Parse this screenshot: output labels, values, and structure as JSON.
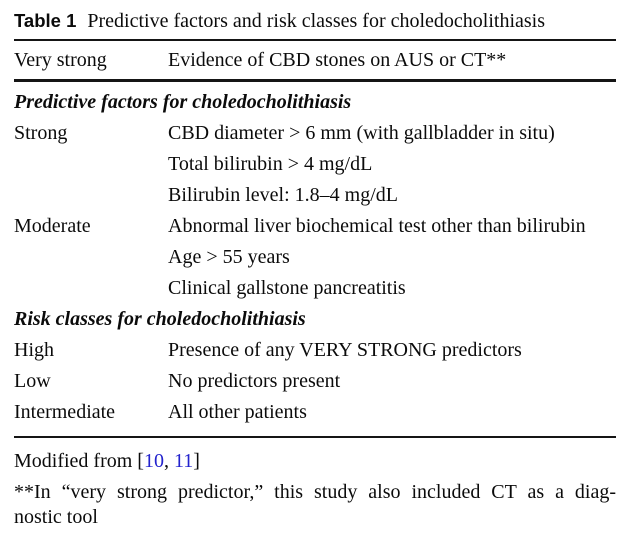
{
  "caption": {
    "label": "Table 1",
    "title": "Predictive factors and risk classes for choledocholithiasis"
  },
  "very_strong_row": {
    "label": "Very strong",
    "description": "Evidence of CBD stones on AUS or CT**"
  },
  "sections": [
    {
      "heading": "Predictive factors for choledocholithiasis",
      "rows": [
        {
          "label": "Strong",
          "lines": [
            "CBD diameter > 6 mm (with gallbladder in situ)",
            "Total bilirubin > 4 mg/dL",
            "Bilirubin level: 1.8–4 mg/dL"
          ]
        },
        {
          "label": "Moderate",
          "lines": [
            "Abnormal liver biochemical test other than bilirubin",
            "Age > 55 years",
            "Clinical gallstone pancreatitis"
          ]
        }
      ]
    },
    {
      "heading": "Risk classes for choledocholithiasis",
      "rows": [
        {
          "label": "High",
          "lines": [
            "Presence of any VERY STRONG predictors"
          ]
        },
        {
          "label": "Low",
          "lines": [
            "No predictors present"
          ]
        },
        {
          "label": "Intermediate",
          "lines": [
            "All other patients"
          ]
        }
      ]
    }
  ],
  "footnotes": {
    "modified": {
      "prefix": "Modified from [",
      "citation_1": "10",
      "separator": ", ",
      "citation_2": "11",
      "suffix": "]"
    },
    "note_line_1": "**In “very strong predictor,” this study also included CT as a diag-",
    "note_line_2": "nostic tool"
  },
  "colors": {
    "text": "#0b0b0b",
    "citation_link": "#2323cd",
    "rule": "#151515"
  }
}
